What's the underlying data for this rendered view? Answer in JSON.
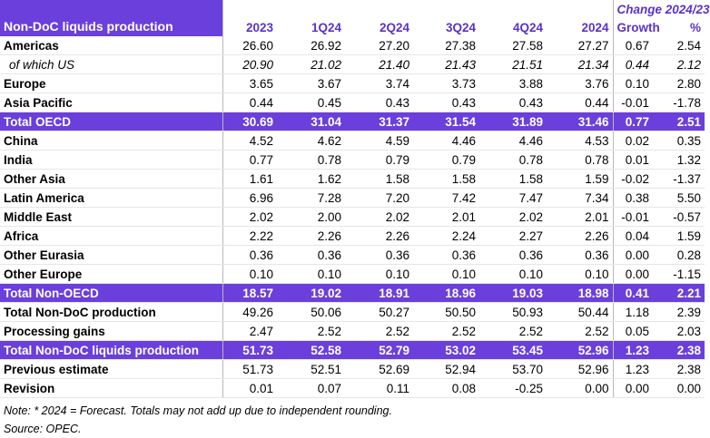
{
  "header": {
    "title": "Non-DoC liquids production",
    "change": "Change 2024/23",
    "columns": [
      "2023",
      "1Q24",
      "2Q24",
      "3Q24",
      "4Q24",
      "2024",
      "Growth",
      "%"
    ]
  },
  "rows": [
    {
      "label": "Americas",
      "values": [
        "26.60",
        "26.92",
        "27.20",
        "27.38",
        "27.58",
        "27.27",
        "0.67",
        "2.54"
      ]
    },
    {
      "label": "of which US",
      "italic": true,
      "values": [
        "20.90",
        "21.02",
        "21.40",
        "21.43",
        "21.51",
        "21.34",
        "0.44",
        "2.12"
      ]
    },
    {
      "label": "Europe",
      "values": [
        "3.65",
        "3.67",
        "3.74",
        "3.73",
        "3.88",
        "3.76",
        "0.10",
        "2.80"
      ]
    },
    {
      "label": "Asia Pacific",
      "values": [
        "0.44",
        "0.45",
        "0.43",
        "0.43",
        "0.43",
        "0.44",
        "-0.01",
        "-1.78"
      ]
    },
    {
      "label": "Total OECD",
      "highlight": true,
      "values": [
        "30.69",
        "31.04",
        "31.37",
        "31.54",
        "31.89",
        "31.46",
        "0.77",
        "2.51"
      ]
    },
    {
      "label": "China",
      "values": [
        "4.52",
        "4.62",
        "4.59",
        "4.46",
        "4.46",
        "4.53",
        "0.02",
        "0.35"
      ]
    },
    {
      "label": "India",
      "values": [
        "0.77",
        "0.78",
        "0.79",
        "0.79",
        "0.78",
        "0.78",
        "0.01",
        "1.32"
      ]
    },
    {
      "label": "Other Asia",
      "values": [
        "1.61",
        "1.62",
        "1.58",
        "1.58",
        "1.58",
        "1.59",
        "-0.02",
        "-1.37"
      ]
    },
    {
      "label": "Latin America",
      "values": [
        "6.96",
        "7.28",
        "7.20",
        "7.42",
        "7.47",
        "7.34",
        "0.38",
        "5.50"
      ]
    },
    {
      "label": "Middle East",
      "values": [
        "2.02",
        "2.00",
        "2.02",
        "2.01",
        "2.02",
        "2.01",
        "-0.01",
        "-0.57"
      ]
    },
    {
      "label": "Africa",
      "values": [
        "2.22",
        "2.26",
        "2.26",
        "2.24",
        "2.27",
        "2.26",
        "0.04",
        "1.59"
      ]
    },
    {
      "label": "Other Eurasia",
      "values": [
        "0.36",
        "0.36",
        "0.36",
        "0.36",
        "0.36",
        "0.36",
        "0.00",
        "0.28"
      ]
    },
    {
      "label": "Other Europe",
      "values": [
        "0.10",
        "0.10",
        "0.10",
        "0.10",
        "0.10",
        "0.10",
        "0.00",
        "-1.15"
      ]
    },
    {
      "label": "Total Non-OECD",
      "highlight": true,
      "values": [
        "18.57",
        "19.02",
        "18.91",
        "18.96",
        "19.03",
        "18.98",
        "0.41",
        "2.21"
      ]
    },
    {
      "label": "Total Non-DoC production",
      "values": [
        "49.26",
        "50.06",
        "50.27",
        "50.50",
        "50.93",
        "50.44",
        "1.18",
        "2.39"
      ]
    },
    {
      "label": "Processing gains",
      "values": [
        "2.47",
        "2.52",
        "2.52",
        "2.52",
        "2.52",
        "2.52",
        "0.05",
        "2.03"
      ]
    },
    {
      "label": "Total Non-DoC liquids production",
      "highlight": true,
      "values": [
        "51.73",
        "52.58",
        "52.79",
        "53.02",
        "53.45",
        "52.96",
        "1.23",
        "2.38"
      ]
    },
    {
      "label": "Previous estimate",
      "values": [
        "51.73",
        "52.51",
        "52.69",
        "52.94",
        "53.70",
        "52.96",
        "1.23",
        "2.38"
      ]
    },
    {
      "label": "Revision",
      "values": [
        "0.01",
        "0.07",
        "0.11",
        "0.08",
        "-0.25",
        "0.00",
        "0.00",
        "0.00"
      ]
    }
  ],
  "notes": [
    "Note: * 2024 = Forecast. Totals may not add up due to independent rounding.",
    "Source: OPEC."
  ]
}
